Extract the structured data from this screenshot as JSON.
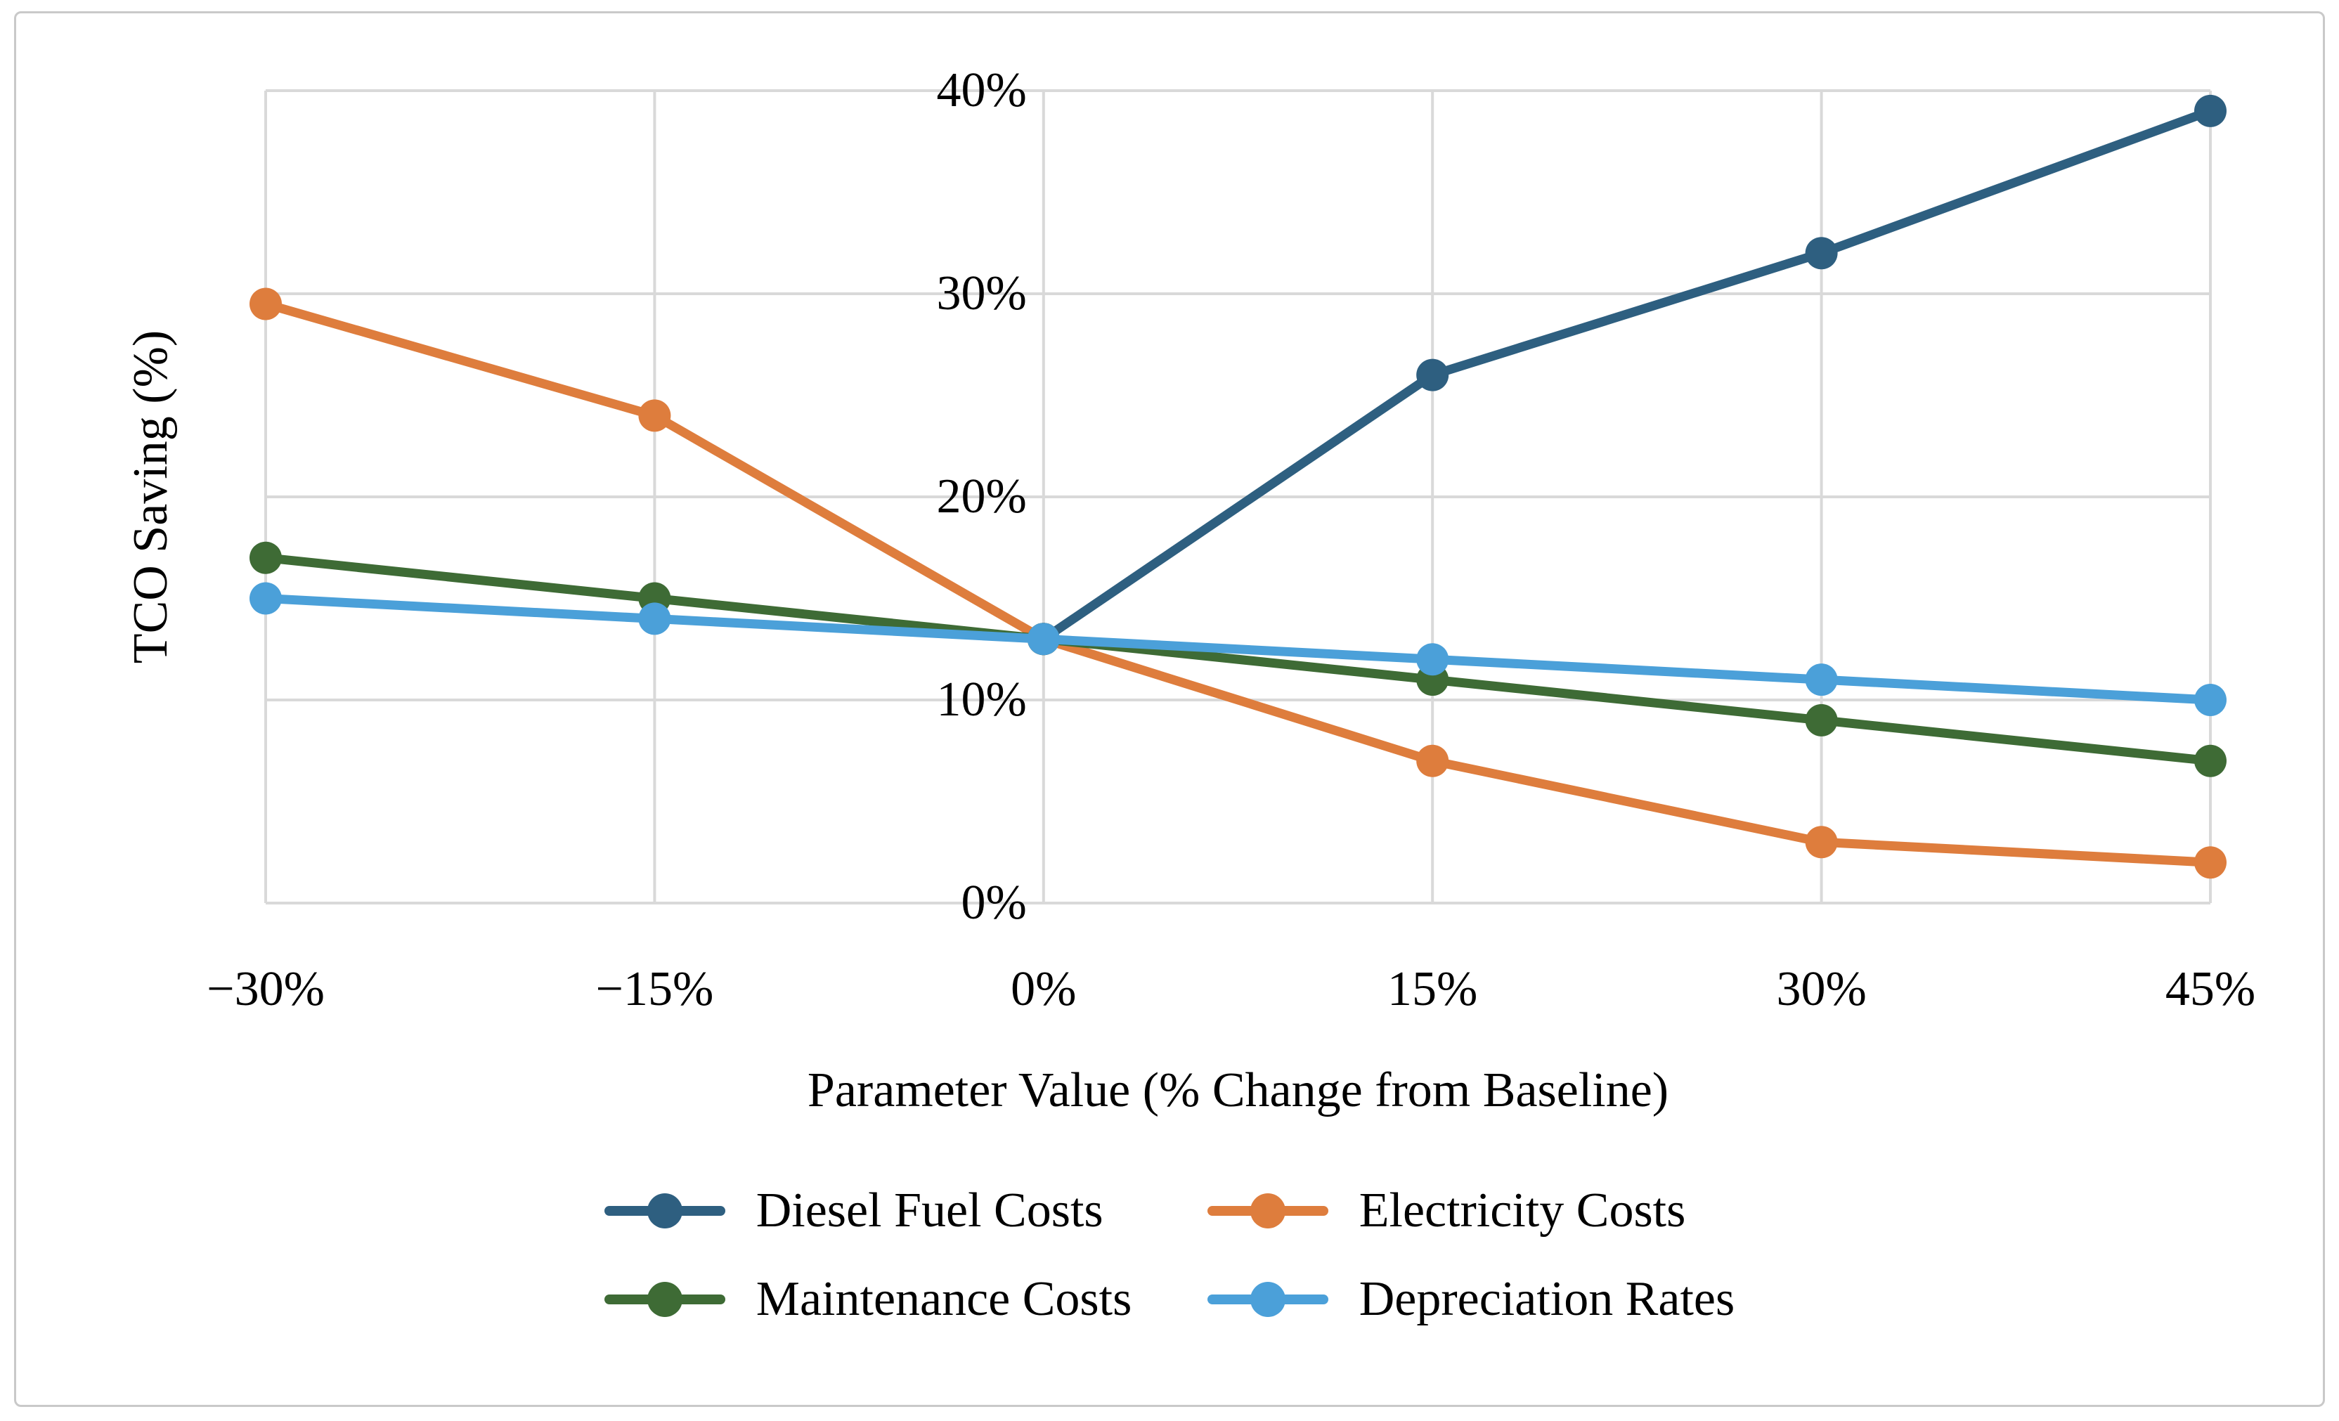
{
  "figure": {
    "background": "#FFFFFF",
    "border_color": "#C9C9C9",
    "text_color": "#000000"
  },
  "chart_data": {
    "type": "line",
    "title": "",
    "xlabel": "Parameter Value (% Change from Baseline)",
    "ylabel": "TCO Saving (%)",
    "x": [
      -30,
      -15,
      0,
      15,
      30,
      45
    ],
    "xtick_labels": [
      "−30%",
      "−15%",
      "0%",
      "15%",
      "30%",
      "45%"
    ],
    "yticks": [
      0,
      10,
      20,
      30,
      40
    ],
    "ytick_labels": [
      "0%",
      "10%",
      "20%",
      "30%",
      "40%"
    ],
    "xlim": [
      -30,
      45
    ],
    "ylim": [
      0,
      40
    ],
    "grid": true,
    "gridline_color": "#D9D9D9",
    "legend_position": "bottom",
    "series": [
      {
        "name": "Diesel Fuel Costs",
        "color": "#2E5F80",
        "values": [
          null,
          null,
          13,
          26,
          32,
          39
        ]
      },
      {
        "name": "Electricity Costs",
        "color": "#DE7D3D",
        "values": [
          29.5,
          24,
          13,
          7,
          3,
          2
        ]
      },
      {
        "name": "Maintenance Costs",
        "color": "#3E6B35",
        "values": [
          17,
          15,
          13,
          11,
          9,
          7
        ]
      },
      {
        "name": "Depreciation Rates",
        "color": "#4BA0D9",
        "values": [
          15,
          14,
          13,
          12,
          11,
          10
        ]
      }
    ]
  }
}
